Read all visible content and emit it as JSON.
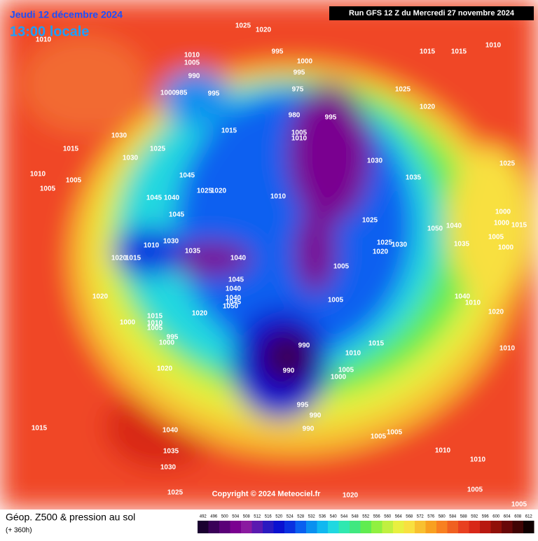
{
  "header": {
    "date": "Jeudi 12 décembre 2024",
    "time": "13:00 locale",
    "run": "Run GFS 12 Z du Mercredi 27 novembre 2024"
  },
  "copyright": "Copyright © 2024 Meteociel.fr",
  "footer": {
    "title": "Géop. Z500 & pression au sol",
    "lead": "(+ 360h)"
  },
  "pressure_labels": [
    "1010",
    "1025",
    "1020",
    "995",
    "1010",
    "1005",
    "1000",
    "995",
    "1015",
    "1015",
    "1010",
    "990",
    "1000",
    "985",
    "995",
    "1025",
    "975",
    "980",
    "995",
    "1020",
    "1005",
    "1010",
    "1015",
    "1030",
    "1015",
    "1025",
    "1030",
    "1030",
    "1025",
    "1010",
    "1005",
    "1005",
    "1045",
    "1025",
    "1020",
    "1035",
    "1010",
    "1045",
    "1040",
    "1045",
    "1025",
    "1000",
    "1000",
    "1015",
    "1050",
    "1040",
    "1035",
    "1030",
    "1010",
    "1035",
    "1040",
    "1025",
    "1020",
    "1005",
    "1000",
    "1015",
    "1020",
    "1030",
    "1045",
    "1040",
    "1005",
    "1020",
    "1040",
    "1045",
    "1050",
    "1005",
    "1040",
    "1010",
    "1020",
    "1000",
    "1015",
    "1010",
    "1005",
    "995",
    "1000",
    "1020",
    "1010",
    "1015",
    "990",
    "990",
    "1005",
    "1000",
    "1010",
    "1020",
    "995",
    "990",
    "990",
    "1005",
    "1005",
    "1040",
    "1035",
    "1030",
    "1015",
    "1025",
    "1010",
    "1010",
    "1020",
    "1005",
    "1005"
  ],
  "colorbar": {
    "values": [
      492,
      496,
      500,
      504,
      508,
      512,
      516,
      520,
      524,
      528,
      532,
      536,
      540,
      544,
      548,
      552,
      556,
      560,
      564,
      568,
      572,
      576,
      580,
      584,
      588,
      592,
      596,
      600,
      604,
      608,
      612
    ],
    "colors": [
      "#1a0030",
      "#3a0058",
      "#5a0078",
      "#7a0090",
      "#8a1aa0",
      "#5a1ab0",
      "#2a1ac0",
      "#0a10d0",
      "#0a30e0",
      "#0a60f0",
      "#0a90f0",
      "#10b8f0",
      "#20d8e0",
      "#30e8b0",
      "#40e880",
      "#60ec50",
      "#90f040",
      "#c0f040",
      "#e8f040",
      "#f8e040",
      "#f8c030",
      "#f8a020",
      "#f88020",
      "#f06020",
      "#e84020",
      "#d82818",
      "#b81810",
      "#901008",
      "#680808",
      "#400404",
      "#100000"
    ]
  }
}
